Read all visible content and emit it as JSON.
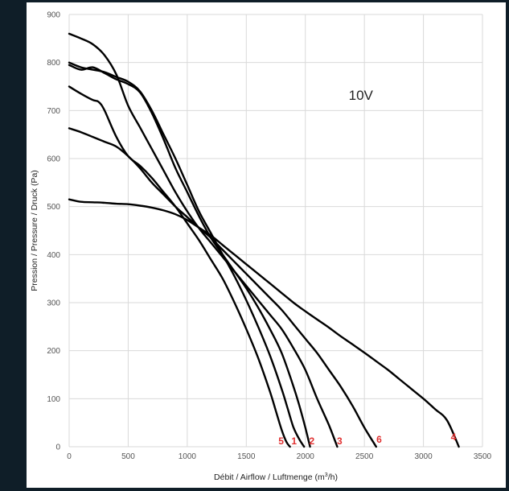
{
  "chart_data": {
    "type": "line",
    "title": "",
    "xlabel_parts": [
      "Débit / Airflow / Luftmenge (m",
      "3",
      "/h)"
    ],
    "ylabel": "Pression / Pressure / Druck (Pa)",
    "xlim": [
      0,
      3500
    ],
    "ylim": [
      0,
      900
    ],
    "xticks": [
      0,
      500,
      1000,
      1500,
      2000,
      2500,
      3000,
      3500
    ],
    "yticks": [
      0,
      100,
      200,
      300,
      400,
      500,
      600,
      700,
      800,
      900
    ],
    "grid": true,
    "annotation": "10V",
    "label_color": "#e03131",
    "line_color": "#000000",
    "series": [
      {
        "name": "1",
        "x": [
          0,
          100,
          200,
          300,
          400,
          500,
          600,
          700,
          800,
          900,
          1000,
          1100,
          1200,
          1300,
          1400,
          1500,
          1600,
          1700,
          1800,
          1850,
          1900,
          1950,
          1990
        ],
        "y": [
          800,
          790,
          785,
          780,
          770,
          760,
          740,
          700,
          650,
          600,
          545,
          490,
          445,
          400,
          355,
          305,
          250,
          190,
          120,
          80,
          40,
          15,
          0
        ]
      },
      {
        "name": "2",
        "x": [
          0,
          100,
          200,
          300,
          400,
          500,
          600,
          700,
          800,
          900,
          1000,
          1100,
          1200,
          1300,
          1400,
          1500,
          1600,
          1700,
          1800,
          1900,
          1950,
          2000,
          2040
        ],
        "y": [
          795,
          785,
          790,
          778,
          765,
          755,
          738,
          695,
          640,
          580,
          530,
          480,
          435,
          400,
          365,
          330,
          290,
          245,
          195,
          125,
          85,
          40,
          0
        ]
      },
      {
        "name": "3",
        "x": [
          0,
          100,
          200,
          300,
          400,
          500,
          600,
          700,
          800,
          900,
          1000,
          1100,
          1200,
          1300,
          1400,
          1500,
          1600,
          1700,
          1800,
          1900,
          2000,
          2100,
          2200,
          2270
        ],
        "y": [
          860,
          850,
          838,
          815,
          775,
          710,
          665,
          620,
          575,
          530,
          490,
          455,
          425,
          395,
          365,
          335,
          305,
          275,
          245,
          205,
          160,
          100,
          45,
          0
        ]
      },
      {
        "name": "4",
        "x": [
          0,
          100,
          200,
          300,
          400,
          500,
          600,
          700,
          800,
          900,
          1000,
          1100,
          1200,
          1300,
          1400,
          1500,
          1600,
          1700,
          1800,
          1900,
          2000,
          2100,
          2200,
          2300,
          2400,
          2500,
          2600,
          2700,
          2800,
          2900,
          3000,
          3100,
          3200,
          3300
        ],
        "y": [
          515,
          510,
          509,
          508,
          506,
          505,
          502,
          498,
          492,
          484,
          472,
          456,
          440,
          420,
          400,
          380,
          360,
          340,
          320,
          300,
          282,
          265,
          248,
          230,
          213,
          196,
          178,
          160,
          140,
          120,
          100,
          78,
          55,
          0
        ]
      },
      {
        "name": "5",
        "x": [
          0,
          100,
          200,
          250,
          300,
          400,
          500,
          600,
          700,
          800,
          900,
          1000,
          1100,
          1200,
          1300,
          1400,
          1500,
          1600,
          1700,
          1750,
          1800,
          1840,
          1870
        ],
        "y": [
          750,
          735,
          722,
          718,
          700,
          645,
          605,
          585,
          560,
          530,
          500,
          465,
          430,
          390,
          350,
          300,
          245,
          185,
          115,
          75,
          35,
          10,
          0
        ]
      },
      {
        "name": "6",
        "x": [
          0,
          100,
          200,
          300,
          400,
          500,
          600,
          700,
          800,
          900,
          1000,
          1100,
          1200,
          1300,
          1400,
          1500,
          1600,
          1700,
          1800,
          1900,
          2000,
          2100,
          2200,
          2300,
          2400,
          2500,
          2600
        ],
        "y": [
          663,
          655,
          645,
          635,
          625,
          605,
          580,
          550,
          525,
          500,
          478,
          456,
          435,
          410,
          385,
          360,
          335,
          310,
          285,
          255,
          225,
          195,
          160,
          125,
          85,
          40,
          0
        ]
      }
    ],
    "label_positions_data": [
      {
        "name": "5",
        "x": 1795,
        "y": 12
      },
      {
        "name": "1",
        "x": 1905,
        "y": 12
      },
      {
        "name": "2",
        "x": 2055,
        "y": 12
      },
      {
        "name": "3",
        "x": 2290,
        "y": 12
      },
      {
        "name": "6",
        "x": 2625,
        "y": 15
      },
      {
        "name": "4",
        "x": 3255,
        "y": 20
      }
    ]
  }
}
